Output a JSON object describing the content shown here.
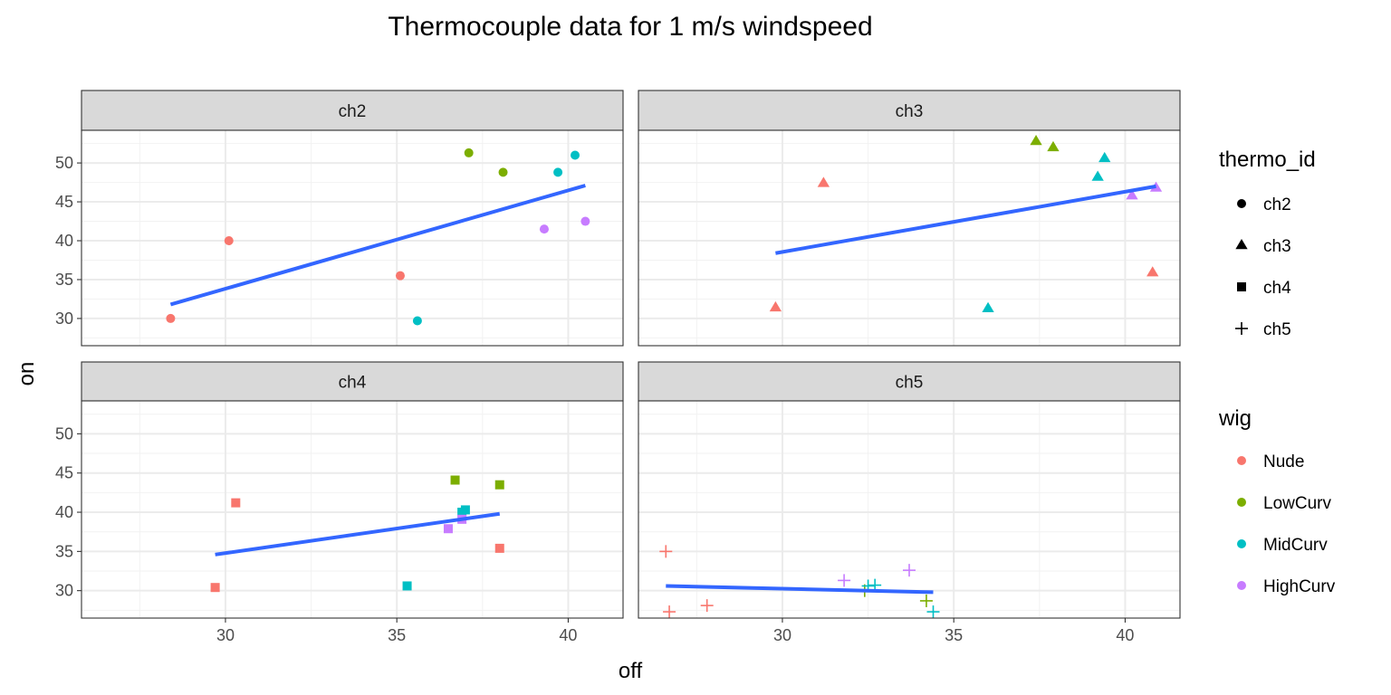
{
  "chart_data": {
    "type": "scatter",
    "title": "Thermocouple data for 1 m/s windspeed",
    "xlabel": "off",
    "ylabel": "on",
    "xlim": [
      25.8,
      41.6
    ],
    "ylim": [
      26.5,
      54.2
    ],
    "x_ticks": [
      30,
      35,
      40
    ],
    "y_ticks": [
      30,
      35,
      40,
      45,
      50
    ],
    "grid": true,
    "facets": [
      {
        "strip": "ch2",
        "shape": "circle",
        "points": [
          {
            "x": 28.4,
            "y": 30.0,
            "wig": "Nude"
          },
          {
            "x": 30.1,
            "y": 40.0,
            "wig": "Nude"
          },
          {
            "x": 35.1,
            "y": 35.5,
            "wig": "Nude"
          },
          {
            "x": 37.1,
            "y": 51.3,
            "wig": "LowCurv"
          },
          {
            "x": 38.1,
            "y": 48.8,
            "wig": "LowCurv"
          },
          {
            "x": 35.6,
            "y": 29.7,
            "wig": "MidCurv"
          },
          {
            "x": 39.7,
            "y": 48.8,
            "wig": "MidCurv"
          },
          {
            "x": 40.2,
            "y": 51.0,
            "wig": "MidCurv"
          },
          {
            "x": 39.3,
            "y": 41.5,
            "wig": "HighCurv"
          },
          {
            "x": 40.5,
            "y": 42.5,
            "wig": "HighCurv"
          }
        ],
        "fit": {
          "x": [
            28.4,
            40.5
          ],
          "y": [
            31.8,
            47.1
          ]
        }
      },
      {
        "strip": "ch3",
        "shape": "triangle",
        "points": [
          {
            "x": 29.8,
            "y": 31.4,
            "wig": "Nude"
          },
          {
            "x": 31.2,
            "y": 47.4,
            "wig": "Nude"
          },
          {
            "x": 40.8,
            "y": 35.9,
            "wig": "Nude"
          },
          {
            "x": 37.4,
            "y": 52.8,
            "wig": "LowCurv"
          },
          {
            "x": 37.9,
            "y": 52.0,
            "wig": "LowCurv"
          },
          {
            "x": 36.0,
            "y": 31.3,
            "wig": "MidCurv"
          },
          {
            "x": 39.2,
            "y": 48.2,
            "wig": "MidCurv"
          },
          {
            "x": 39.4,
            "y": 50.6,
            "wig": "MidCurv"
          },
          {
            "x": 40.2,
            "y": 45.8,
            "wig": "HighCurv"
          },
          {
            "x": 40.9,
            "y": 46.8,
            "wig": "HighCurv"
          }
        ],
        "fit": {
          "x": [
            29.8,
            40.9
          ],
          "y": [
            38.4,
            47.0
          ]
        }
      },
      {
        "strip": "ch4",
        "shape": "square",
        "points": [
          {
            "x": 29.7,
            "y": 30.4,
            "wig": "Nude"
          },
          {
            "x": 30.3,
            "y": 41.2,
            "wig": "Nude"
          },
          {
            "x": 38.0,
            "y": 35.4,
            "wig": "Nude"
          },
          {
            "x": 36.7,
            "y": 44.1,
            "wig": "LowCurv"
          },
          {
            "x": 38.0,
            "y": 43.5,
            "wig": "LowCurv"
          },
          {
            "x": 35.3,
            "y": 30.6,
            "wig": "MidCurv"
          },
          {
            "x": 36.9,
            "y": 40.0,
            "wig": "MidCurv"
          },
          {
            "x": 37.0,
            "y": 40.3,
            "wig": "MidCurv"
          },
          {
            "x": 36.5,
            "y": 37.9,
            "wig": "HighCurv"
          },
          {
            "x": 36.9,
            "y": 39.1,
            "wig": "HighCurv"
          }
        ],
        "fit": {
          "x": [
            29.7,
            38.0
          ],
          "y": [
            34.6,
            39.8
          ]
        }
      },
      {
        "strip": "ch5",
        "shape": "plus",
        "points": [
          {
            "x": 26.6,
            "y": 35.0,
            "wig": "Nude"
          },
          {
            "x": 26.7,
            "y": 27.3,
            "wig": "Nude"
          },
          {
            "x": 27.8,
            "y": 28.1,
            "wig": "Nude"
          },
          {
            "x": 32.4,
            "y": 30.0,
            "wig": "LowCurv"
          },
          {
            "x": 34.2,
            "y": 28.7,
            "wig": "LowCurv"
          },
          {
            "x": 32.5,
            "y": 30.6,
            "wig": "MidCurv"
          },
          {
            "x": 32.7,
            "y": 30.7,
            "wig": "MidCurv"
          },
          {
            "x": 34.4,
            "y": 27.3,
            "wig": "MidCurv"
          },
          {
            "x": 31.8,
            "y": 31.3,
            "wig": "HighCurv"
          },
          {
            "x": 33.7,
            "y": 32.6,
            "wig": "HighCurv"
          }
        ],
        "fit": {
          "x": [
            26.6,
            34.4
          ],
          "y": [
            30.6,
            29.8
          ]
        }
      }
    ],
    "legend_shape": {
      "title": "thermo_id",
      "items": [
        {
          "label": "ch2",
          "shape": "circle"
        },
        {
          "label": "ch3",
          "shape": "triangle"
        },
        {
          "label": "ch4",
          "shape": "square"
        },
        {
          "label": "ch5",
          "shape": "plus"
        }
      ]
    },
    "legend_color": {
      "title": "wig",
      "items": [
        {
          "label": "Nude",
          "color": "#F8766D"
        },
        {
          "label": "LowCurv",
          "color": "#7CAE00"
        },
        {
          "label": "MidCurv",
          "color": "#00BFC4"
        },
        {
          "label": "HighCurv",
          "color": "#C77CFF"
        }
      ]
    },
    "fit_color": "#3366FF",
    "legend_placement": "right"
  }
}
